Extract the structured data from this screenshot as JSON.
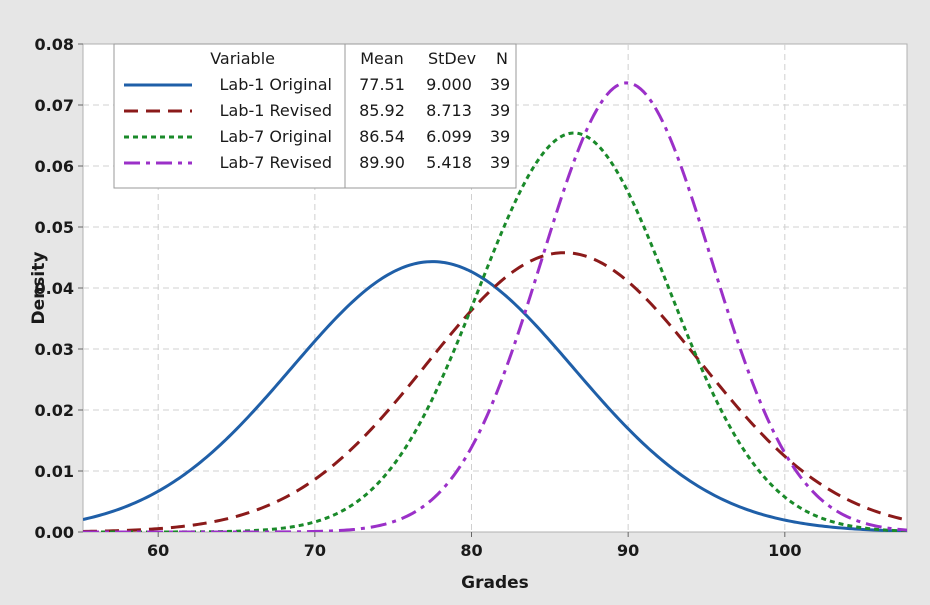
{
  "chart_data": {
    "type": "line",
    "xlabel": "Grades",
    "ylabel": "Density",
    "xlim": [
      55.2,
      107.8
    ],
    "ylim": [
      0,
      0.08
    ],
    "x_ticks": [
      60,
      70,
      80,
      90,
      100
    ],
    "y_ticks": [
      0.0,
      0.01,
      0.02,
      0.03,
      0.04,
      0.05,
      0.06,
      0.07,
      0.08
    ],
    "y_tick_labels": [
      "0.00",
      "0.01",
      "0.02",
      "0.03",
      "0.04",
      "0.05",
      "0.06",
      "0.07",
      "0.08"
    ],
    "x_tick_labels": [
      "60",
      "70",
      "80",
      "90",
      "100"
    ],
    "grid": true,
    "legend_position": "top-left",
    "legend": {
      "headers": [
        "Variable",
        "Mean",
        "StDev",
        "N"
      ],
      "rows": [
        [
          "Lab-1 Original",
          "77.51",
          "9.000",
          "39"
        ],
        [
          "Lab-1 Revised",
          "85.92",
          "8.713",
          "39"
        ],
        [
          "Lab-7 Original",
          "86.54",
          "6.099",
          "39"
        ],
        [
          "Lab-7 Revised",
          "89.90",
          "5.418",
          "39"
        ]
      ]
    },
    "series": [
      {
        "name": "Lab-1 Original",
        "mean": 77.51,
        "stdev": 9.0,
        "n": 39,
        "color": "#1f5fa8",
        "dash": "solid"
      },
      {
        "name": "Lab-1 Revised",
        "mean": 85.92,
        "stdev": 8.713,
        "n": 39,
        "color": "#8b1a1a",
        "dash": "dashed"
      },
      {
        "name": "Lab-7 Original",
        "mean": 86.54,
        "stdev": 6.099,
        "n": 39,
        "color": "#1a8a2a",
        "dash": "dotted"
      },
      {
        "name": "Lab-7 Revised",
        "mean": 89.9,
        "stdev": 5.418,
        "n": 39,
        "color": "#9b30c8",
        "dash": "dashdot"
      }
    ]
  }
}
